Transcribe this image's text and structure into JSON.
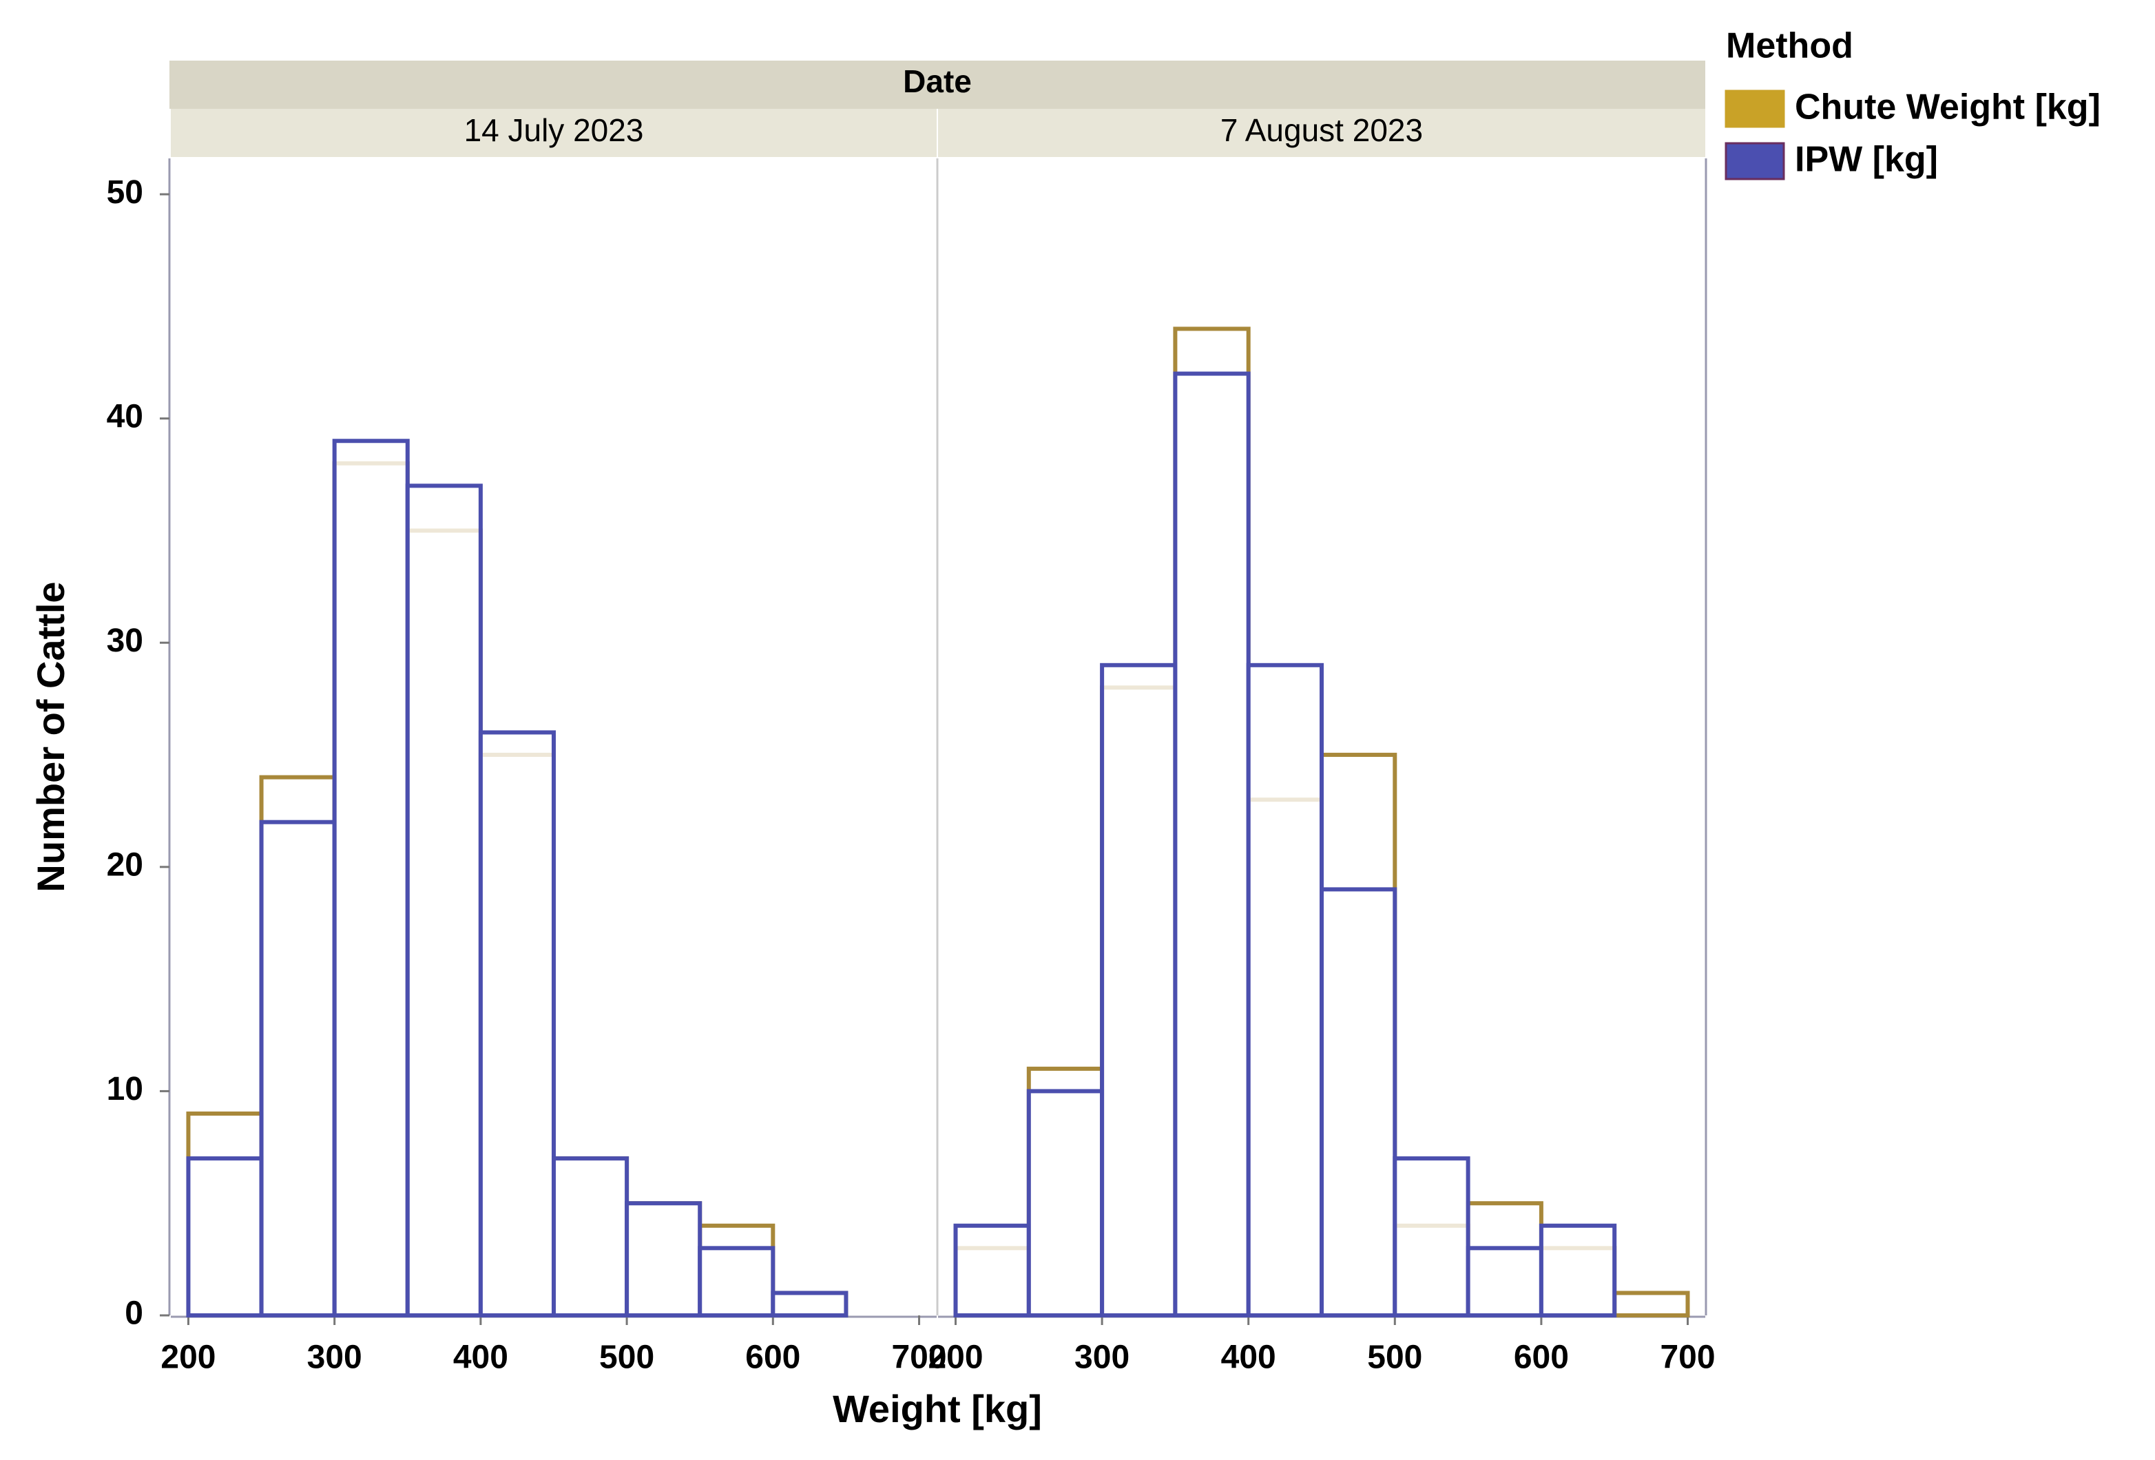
{
  "chart_data": {
    "type": "histogram",
    "facet_label": "Date",
    "xlabel": "Weight [kg]",
    "ylabel": "Number of Cattle",
    "legend_title": "Method",
    "series": [
      {
        "name": "Chute Weight [kg]",
        "color": "#a8883a",
        "swatch": "#c9a227"
      },
      {
        "name": "IPW [kg]",
        "color": "#4b4fae",
        "swatch": "#4b4fb0"
      }
    ],
    "bins": [
      200,
      250,
      300,
      350,
      400,
      450,
      500,
      550,
      600,
      650,
      700
    ],
    "panels": [
      {
        "title": "14 July 2023",
        "values": [
          [
            9,
            24,
            38,
            35,
            25,
            7,
            5,
            4,
            1,
            0
          ],
          [
            7,
            22,
            39,
            37,
            26,
            7,
            5,
            3,
            1,
            0
          ]
        ]
      },
      {
        "title": "7 August 2023",
        "values": [
          [
            3,
            11,
            28,
            44,
            23,
            25,
            4,
            5,
            3,
            1
          ],
          [
            4,
            10,
            29,
            42,
            29,
            19,
            7,
            3,
            4,
            0
          ]
        ]
      }
    ],
    "xlim": [
      188,
      712
    ],
    "xticks": [
      200,
      300,
      400,
      500,
      600,
      700
    ],
    "ylim": [
      0,
      51.6
    ],
    "yticks": [
      0,
      10,
      20,
      30,
      40,
      50
    ]
  }
}
